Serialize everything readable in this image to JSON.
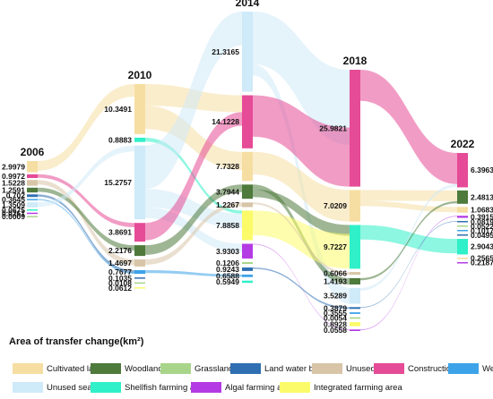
{
  "chart_data": {
    "type": "sankey",
    "xlabel": "",
    "ylabel": "",
    "years": [
      "2006",
      "2010",
      "2014",
      "2018",
      "2022"
    ],
    "categories": [
      "Cultivated land",
      "Woodland",
      "Grassland",
      "Land water body",
      "Unused land",
      "Construction land",
      "Wetland",
      "Unused sea",
      "Shellfish farming area",
      "Algal farming area",
      "Integrated farming area"
    ],
    "colors": {
      "Cultivated land": "#f6dea2",
      "Woodland": "#4e7a3c",
      "Grassland": "#a9d58a",
      "Land water body": "#2f6fb2",
      "Unused land": "#d8c5a8",
      "Construction land": "#e54b96",
      "Wetland": "#3da3e8",
      "Unused sea": "#cfeaf8",
      "Shellfish farming area": "#2ff0c8",
      "Algal farming area": "#b43be4",
      "Integrated farming area": "#fbfb6a"
    },
    "nodes": {
      "2006": [
        {
          "cat": "Cultivated land",
          "value": 2.9979,
          "label": "2.9979"
        },
        {
          "cat": "Construction land",
          "value": 0.9972,
          "label": "0.9972"
        },
        {
          "cat": "Unused land",
          "value": 1.5228,
          "label": "1.5228"
        },
        {
          "cat": "Woodland",
          "value": 1.2591,
          "label": "1.2591"
        },
        {
          "cat": "Land water body",
          "value": 0.702,
          "label": "0.702"
        },
        {
          "cat": "Wetland",
          "value": 0.3645,
          "label": "0.3645"
        },
        {
          "cat": "Unused sea",
          "value": 1.3509,
          "label": "1.3509"
        },
        {
          "cat": "Shellfish farming area",
          "value": 0.0675,
          "label": "0.0675"
        },
        {
          "cat": "Algal farming area",
          "value": 0.0261,
          "label": "0.0261"
        },
        {
          "cat": "Grassland",
          "value": 0.0009,
          "label": "0.0009"
        }
      ],
      "2010": [
        {
          "cat": "Cultivated land",
          "value": 10.3491,
          "label": "10.3491"
        },
        {
          "cat": "Shellfish farming area",
          "value": 0.8883,
          "label": "0.8883"
        },
        {
          "cat": "Unused sea",
          "value": 15.2757,
          "label": "15.2757"
        },
        {
          "cat": "Construction land",
          "value": 3.8691,
          "label": "3.8691"
        },
        {
          "cat": "Woodland",
          "value": 2.2176,
          "label": "2.2176"
        },
        {
          "cat": "Unused land",
          "value": 1.4697,
          "label": "1.4697"
        },
        {
          "cat": "Wetland",
          "value": 0.7677,
          "label": "0.7677"
        },
        {
          "cat": "Land water body",
          "value": 0.1035,
          "label": "0.1035"
        },
        {
          "cat": "Grassland",
          "value": 0.0108,
          "label": "0.0108"
        },
        {
          "cat": "Integrated farming area",
          "value": 0.0612,
          "label": "0.0612"
        }
      ],
      "2014": [
        {
          "cat": "Unused sea",
          "value": 21.3165,
          "label": "21.3165"
        },
        {
          "cat": "Construction land",
          "value": 14.1228,
          "label": "14.1228"
        },
        {
          "cat": "Cultivated land",
          "value": 7.7328,
          "label": "7.7328"
        },
        {
          "cat": "Woodland",
          "value": 3.7944,
          "label": "3.7944"
        },
        {
          "cat": "Unused land",
          "value": 1.2267,
          "label": "1.2267"
        },
        {
          "cat": "Integrated farming area",
          "value": 7.8858,
          "label": "7.8858"
        },
        {
          "cat": "Algal farming area",
          "value": 3.9303,
          "label": "3.9303"
        },
        {
          "cat": "Grassland",
          "value": 0.1206,
          "label": "0.1206"
        },
        {
          "cat": "Land water body",
          "value": 0.9243,
          "label": "0.9243"
        },
        {
          "cat": "Wetland",
          "value": 0.6588,
          "label": "0.6588"
        },
        {
          "cat": "Shellfish farming area",
          "value": 0.5949,
          "label": "0.5949"
        }
      ],
      "2018": [
        {
          "cat": "Construction land",
          "value": 25.9821,
          "label": "25.9821"
        },
        {
          "cat": "Cultivated land",
          "value": 7.0209,
          "label": "7.0209"
        },
        {
          "cat": "Shellfish farming area",
          "value": 9.7227,
          "label": "9.7227"
        },
        {
          "cat": "Unused land",
          "value": 0.6066,
          "label": "0.6066"
        },
        {
          "cat": "Woodland",
          "value": 1.4193,
          "label": "1.4193"
        },
        {
          "cat": "Unused sea",
          "value": 3.5289,
          "label": "3.5289"
        },
        {
          "cat": "Land water body",
          "value": 0.3879,
          "label": "0.3879"
        },
        {
          "cat": "Wetland",
          "value": 0.3555,
          "label": "0.3555"
        },
        {
          "cat": "Grassland",
          "value": 0.0054,
          "label": "0.0054"
        },
        {
          "cat": "Integrated farming area",
          "value": 0.8928,
          "label": "0.8928"
        },
        {
          "cat": "Algal farming area",
          "value": 0.0558,
          "label": "0.0558"
        }
      ],
      "2022": [
        {
          "cat": "Construction land",
          "value": 6.3963,
          "label": "6.3963"
        },
        {
          "cat": "Woodland",
          "value": 2.4813,
          "label": "2.4813"
        },
        {
          "cat": "Cultivated land",
          "value": 1.0683,
          "label": "1.0683"
        },
        {
          "cat": "Algal farming area",
          "value": 0.3915,
          "label": "0.3915"
        },
        {
          "cat": "Land water body",
          "value": 0.0819,
          "label": "0.0819"
        },
        {
          "cat": "Grassland",
          "value": 0.0522,
          "label": "0.0522"
        },
        {
          "cat": "Wetland",
          "value": 0.1017,
          "label": "0.1017"
        },
        {
          "cat": "Land water body",
          "value": 0.0495,
          "label": "0.0495"
        },
        {
          "cat": "Shellfish farming area",
          "value": 2.9043,
          "label": "2.9043"
        },
        {
          "cat": "Cultivated land",
          "value": 0.2565,
          "label": "0.2565"
        },
        {
          "cat": "Algal farming area",
          "value": 0.2187,
          "label": "0.2187"
        }
      ]
    },
    "flows": [
      {
        "from": [
          "2006",
          "Cultivated land"
        ],
        "to": [
          "2010",
          "Cultivated land"
        ],
        "value": 2.6
      },
      {
        "from": [
          "2006",
          "Construction land"
        ],
        "to": [
          "2010",
          "Construction land"
        ],
        "value": 0.9
      },
      {
        "from": [
          "2006",
          "Unused land"
        ],
        "to": [
          "2010",
          "Unused land"
        ],
        "value": 1.2
      },
      {
        "from": [
          "2006",
          "Woodland"
        ],
        "to": [
          "2010",
          "Woodland"
        ],
        "value": 1.1
      },
      {
        "from": [
          "2006",
          "Land water body"
        ],
        "to": [
          "2010",
          "Wetland"
        ],
        "value": 0.6
      },
      {
        "from": [
          "2006",
          "Wetland"
        ],
        "to": [
          "2010",
          "Wetland"
        ],
        "value": 0.3
      },
      {
        "from": [
          "2006",
          "Unused sea"
        ],
        "to": [
          "2010",
          "Unused sea"
        ],
        "value": 1.2
      },
      {
        "from": [
          "2010",
          "Cultivated land"
        ],
        "to": [
          "2014",
          "Construction land"
        ],
        "value": 4.5
      },
      {
        "from": [
          "2010",
          "Cultivated land"
        ],
        "to": [
          "2014",
          "Cultivated land"
        ],
        "value": 4.8
      },
      {
        "from": [
          "2010",
          "Shellfish farming area"
        ],
        "to": [
          "2014",
          "Integrated farming area"
        ],
        "value": 0.8
      },
      {
        "from": [
          "2010",
          "Unused sea"
        ],
        "to": [
          "2014",
          "Unused sea"
        ],
        "value": 9.0
      },
      {
        "from": [
          "2010",
          "Unused sea"
        ],
        "to": [
          "2014",
          "Integrated farming area"
        ],
        "value": 3.8
      },
      {
        "from": [
          "2010",
          "Unused sea"
        ],
        "to": [
          "2014",
          "Algal farming area"
        ],
        "value": 2.2
      },
      {
        "from": [
          "2010",
          "Construction land"
        ],
        "to": [
          "2014",
          "Construction land"
        ],
        "value": 3.6
      },
      {
        "from": [
          "2010",
          "Woodland"
        ],
        "to": [
          "2014",
          "Woodland"
        ],
        "value": 2.0
      },
      {
        "from": [
          "2010",
          "Unused land"
        ],
        "to": [
          "2014",
          "Unused land"
        ],
        "value": 1.1
      },
      {
        "from": [
          "2010",
          "Wetland"
        ],
        "to": [
          "2014",
          "Wetland"
        ],
        "value": 0.6
      },
      {
        "from": [
          "2014",
          "Unused sea"
        ],
        "to": [
          "2018",
          "Construction land"
        ],
        "value": 14.0
      },
      {
        "from": [
          "2014",
          "Unused sea"
        ],
        "to": [
          "2018",
          "Unused sea"
        ],
        "value": 3.0
      },
      {
        "from": [
          "2014",
          "Construction land"
        ],
        "to": [
          "2018",
          "Construction land"
        ],
        "value": 11.0
      },
      {
        "from": [
          "2014",
          "Cultivated land"
        ],
        "to": [
          "2018",
          "Cultivated land"
        ],
        "value": 6.0
      },
      {
        "from": [
          "2014",
          "Woodland"
        ],
        "to": [
          "2018",
          "Woodland"
        ],
        "value": 1.3
      },
      {
        "from": [
          "2014",
          "Woodland"
        ],
        "to": [
          "2018",
          "Shellfish farming area"
        ],
        "value": 2.0
      },
      {
        "from": [
          "2014",
          "Integrated farming area"
        ],
        "to": [
          "2018",
          "Shellfish farming area"
        ],
        "value": 6.5
      },
      {
        "from": [
          "2014",
          "Algal farming area"
        ],
        "to": [
          "2018",
          "Algal farming area"
        ],
        "value": 0.05
      },
      {
        "from": [
          "2014",
          "Unused land"
        ],
        "to": [
          "2018",
          "Unused land"
        ],
        "value": 0.5
      },
      {
        "from": [
          "2014",
          "Land water body"
        ],
        "to": [
          "2018",
          "Land water body"
        ],
        "value": 0.35
      },
      {
        "from": [
          "2018",
          "Construction land"
        ],
        "to": [
          "2022",
          "Construction land"
        ],
        "value": 5.8
      },
      {
        "from": [
          "2018",
          "Cultivated land"
        ],
        "to": [
          "2022",
          "Woodland"
        ],
        "value": 2.0
      },
      {
        "from": [
          "2018",
          "Cultivated land"
        ],
        "to": [
          "2022",
          "Cultivated land"
        ],
        "value": 1.0
      },
      {
        "from": [
          "2018",
          "Shellfish farming area"
        ],
        "to": [
          "2022",
          "Shellfish farming area"
        ],
        "value": 2.7
      },
      {
        "from": [
          "2018",
          "Unused sea"
        ],
        "to": [
          "2022",
          "Construction land"
        ],
        "value": 0.5
      },
      {
        "from": [
          "2018",
          "Woodland"
        ],
        "to": [
          "2022",
          "Woodland"
        ],
        "value": 0.4
      },
      {
        "from": [
          "2018",
          "Algal farming area"
        ],
        "to": [
          "2022",
          "Algal farming area"
        ],
        "value": 0.05
      },
      {
        "from": [
          "2018",
          "Land water body"
        ],
        "to": [
          "2022",
          "Land water body"
        ],
        "value": 0.08
      }
    ],
    "legend_title": "Area of transfer change(km²)",
    "legend": [
      "Cultivated land",
      "Woodland",
      "Grassland",
      "Land water body",
      "Unused land",
      "Construction land",
      "Wetland",
      "Unused sea",
      "Shellfish farming area",
      "Algal farming area",
      "Integrated farming area"
    ]
  }
}
